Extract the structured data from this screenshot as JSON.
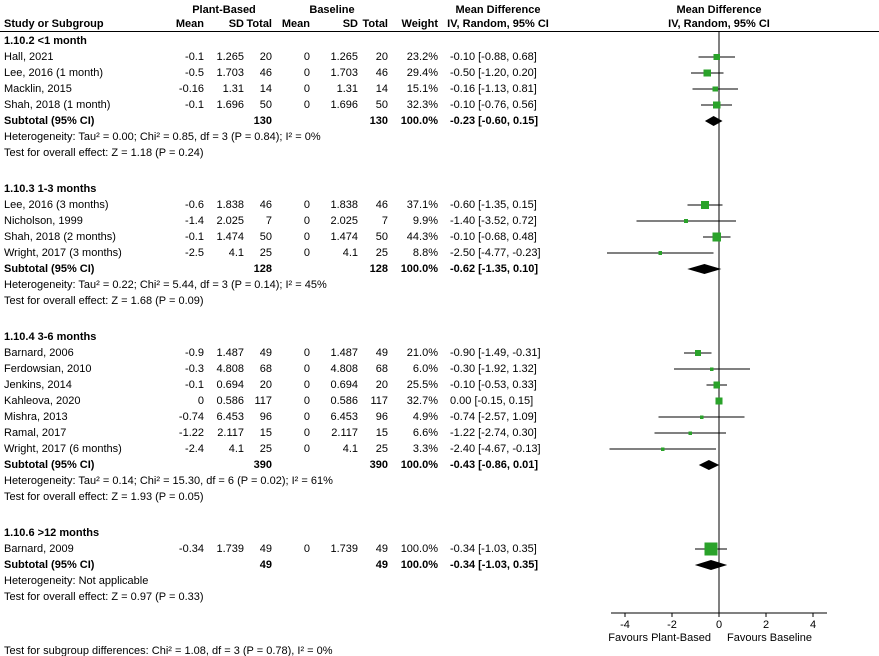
{
  "header": {
    "col_study": "Study or Subgroup",
    "group_plant": "Plant-Based",
    "group_baseline": "Baseline",
    "col_mean": "Mean",
    "col_sd": "SD",
    "col_total": "Total",
    "col_weight": "Weight",
    "md_title": "Mean Difference",
    "ci_method": "IV, Random, 95% CI"
  },
  "footer": {
    "subgroup_test": "Test for subgroup differences: Chi² = 1.08, df = 3 (P = 0.78), I² = 0%"
  },
  "colors": {
    "marker": "#2AA22A",
    "diamond": "#000000",
    "line": "#000000",
    "background": "#FFFFFF"
  },
  "chart_data": {
    "type": "forest",
    "effect_measure": "Mean Difference",
    "model": "IV, Random, 95% CI",
    "axis": {
      "ticks": [
        -4,
        -2,
        0,
        2,
        4
      ],
      "xlim": [
        -4.6,
        4.6
      ],
      "favours_left": "Favours Plant-Based",
      "favours_right": "Favours Baseline"
    },
    "sections": [
      {
        "title": "1.10.2 <1 month",
        "studies": [
          {
            "name": "Hall, 2021",
            "mean1": "-0.1",
            "sd1": "1.265",
            "total1": "20",
            "mean2": "0",
            "sd2": "1.265",
            "total2": "20",
            "weight": 23.2,
            "weight_text": "23.2%",
            "est": -0.1,
            "lo": -0.88,
            "hi": 0.68,
            "ci_text": "-0.10 [-0.88, 0.68]"
          },
          {
            "name": "Lee, 2016 (1 month)",
            "mean1": "-0.5",
            "sd1": "1.703",
            "total1": "46",
            "mean2": "0",
            "sd2": "1.703",
            "total2": "46",
            "weight": 29.4,
            "weight_text": "29.4%",
            "est": -0.5,
            "lo": -1.2,
            "hi": 0.2,
            "ci_text": "-0.50 [-1.20, 0.20]"
          },
          {
            "name": "Macklin, 2015",
            "mean1": "-0.16",
            "sd1": "1.31",
            "total1": "14",
            "mean2": "0",
            "sd2": "1.31",
            "total2": "14",
            "weight": 15.1,
            "weight_text": "15.1%",
            "est": -0.16,
            "lo": -1.13,
            "hi": 0.81,
            "ci_text": "-0.16 [-1.13, 0.81]"
          },
          {
            "name": "Shah, 2018 (1 month)",
            "mean1": "-0.1",
            "sd1": "1.696",
            "total1": "50",
            "mean2": "0",
            "sd2": "1.696",
            "total2": "50",
            "weight": 32.3,
            "weight_text": "32.3%",
            "est": -0.1,
            "lo": -0.76,
            "hi": 0.56,
            "ci_text": "-0.10 [-0.76, 0.56]"
          }
        ],
        "subtotal": {
          "label": "Subtotal (95% CI)",
          "total1": "130",
          "total2": "130",
          "weight_text": "100.0%",
          "est": -0.23,
          "lo": -0.6,
          "hi": 0.15,
          "ci_text": "-0.23 [-0.60, 0.15]"
        },
        "heterogeneity": "Heterogeneity: Tau² = 0.00; Chi² = 0.85, df = 3 (P = 0.84); I² = 0%",
        "test": "Test for overall effect: Z = 1.18 (P = 0.24)"
      },
      {
        "title": "1.10.3 1-3 months",
        "studies": [
          {
            "name": "Lee, 2016 (3 months)",
            "mean1": "-0.6",
            "sd1": "1.838",
            "total1": "46",
            "mean2": "0",
            "sd2": "1.838",
            "total2": "46",
            "weight": 37.1,
            "weight_text": "37.1%",
            "est": -0.6,
            "lo": -1.35,
            "hi": 0.15,
            "ci_text": "-0.60 [-1.35, 0.15]"
          },
          {
            "name": "Nicholson, 1999",
            "mean1": "-1.4",
            "sd1": "2.025",
            "total1": "7",
            "mean2": "0",
            "sd2": "2.025",
            "total2": "7",
            "weight": 9.9,
            "weight_text": "9.9%",
            "est": -1.4,
            "lo": -3.52,
            "hi": 0.72,
            "ci_text": "-1.40 [-3.52, 0.72]"
          },
          {
            "name": "Shah, 2018 (2 months)",
            "mean1": "-0.1",
            "sd1": "1.474",
            "total1": "50",
            "mean2": "0",
            "sd2": "1.474",
            "total2": "50",
            "weight": 44.3,
            "weight_text": "44.3%",
            "est": -0.1,
            "lo": -0.68,
            "hi": 0.48,
            "ci_text": "-0.10 [-0.68, 0.48]"
          },
          {
            "name": "Wright, 2017 (3 months)",
            "mean1": "-2.5",
            "sd1": "4.1",
            "total1": "25",
            "mean2": "0",
            "sd2": "4.1",
            "total2": "25",
            "weight": 8.8,
            "weight_text": "8.8%",
            "est": -2.5,
            "lo": -4.77,
            "hi": -0.23,
            "ci_text": "-2.50 [-4.77, -0.23]"
          }
        ],
        "subtotal": {
          "label": "Subtotal (95% CI)",
          "total1": "128",
          "total2": "128",
          "weight_text": "100.0%",
          "est": -0.62,
          "lo": -1.35,
          "hi": 0.1,
          "ci_text": "-0.62 [-1.35, 0.10]"
        },
        "heterogeneity": "Heterogeneity: Tau² = 0.22; Chi² = 5.44, df = 3 (P = 0.14); I² = 45%",
        "test": "Test for overall effect: Z = 1.68 (P = 0.09)"
      },
      {
        "title": "1.10.4 3-6 months",
        "studies": [
          {
            "name": "Barnard, 2006",
            "mean1": "-0.9",
            "sd1": "1.487",
            "total1": "49",
            "mean2": "0",
            "sd2": "1.487",
            "total2": "49",
            "weight": 21.0,
            "weight_text": "21.0%",
            "est": -0.9,
            "lo": -1.49,
            "hi": -0.31,
            "ci_text": "-0.90 [-1.49, -0.31]"
          },
          {
            "name": "Ferdowsian, 2010",
            "mean1": "-0.3",
            "sd1": "4.808",
            "total1": "68",
            "mean2": "0",
            "sd2": "4.808",
            "total2": "68",
            "weight": 6.0,
            "weight_text": "6.0%",
            "est": -0.3,
            "lo": -1.92,
            "hi": 1.32,
            "ci_text": "-0.30 [-1.92, 1.32]"
          },
          {
            "name": "Jenkins, 2014",
            "mean1": "-0.1",
            "sd1": "0.694",
            "total1": "20",
            "mean2": "0",
            "sd2": "0.694",
            "total2": "20",
            "weight": 25.5,
            "weight_text": "25.5%",
            "est": -0.1,
            "lo": -0.53,
            "hi": 0.33,
            "ci_text": "-0.10 [-0.53, 0.33]"
          },
          {
            "name": "Kahleova, 2020",
            "mean1": "0",
            "sd1": "0.586",
            "total1": "117",
            "mean2": "0",
            "sd2": "0.586",
            "total2": "117",
            "weight": 32.7,
            "weight_text": "32.7%",
            "est": 0.0,
            "lo": -0.15,
            "hi": 0.15,
            "ci_text": "0.00 [-0.15, 0.15]"
          },
          {
            "name": "Mishra, 2013",
            "mean1": "-0.74",
            "sd1": "6.453",
            "total1": "96",
            "mean2": "0",
            "sd2": "6.453",
            "total2": "96",
            "weight": 4.9,
            "weight_text": "4.9%",
            "est": -0.74,
            "lo": -2.57,
            "hi": 1.09,
            "ci_text": "-0.74 [-2.57, 1.09]"
          },
          {
            "name": "Ramal, 2017",
            "mean1": "-1.22",
            "sd1": "2.117",
            "total1": "15",
            "mean2": "0",
            "sd2": "2.117",
            "total2": "15",
            "weight": 6.6,
            "weight_text": "6.6%",
            "est": -1.22,
            "lo": -2.74,
            "hi": 0.3,
            "ci_text": "-1.22 [-2.74, 0.30]"
          },
          {
            "name": "Wright, 2017 (6 months)",
            "mean1": "-2.4",
            "sd1": "4.1",
            "total1": "25",
            "mean2": "0",
            "sd2": "4.1",
            "total2": "25",
            "weight": 3.3,
            "weight_text": "3.3%",
            "est": -2.4,
            "lo": -4.67,
            "hi": -0.13,
            "ci_text": "-2.40 [-4.67, -0.13]"
          }
        ],
        "subtotal": {
          "label": "Subtotal (95% CI)",
          "total1": "390",
          "total2": "390",
          "weight_text": "100.0%",
          "est": -0.43,
          "lo": -0.86,
          "hi": 0.01,
          "ci_text": "-0.43 [-0.86, 0.01]"
        },
        "heterogeneity": "Heterogeneity: Tau² = 0.14; Chi² = 15.30, df = 6 (P = 0.02); I² = 61%",
        "test": "Test for overall effect: Z = 1.93 (P = 0.05)"
      },
      {
        "title": "1.10.6 >12 months",
        "studies": [
          {
            "name": "Barnard, 2009",
            "mean1": "-0.34",
            "sd1": "1.739",
            "total1": "49",
            "mean2": "0",
            "sd2": "1.739",
            "total2": "49",
            "weight": 100.0,
            "weight_text": "100.0%",
            "est": -0.34,
            "lo": -1.03,
            "hi": 0.35,
            "ci_text": "-0.34 [-1.03, 0.35]"
          }
        ],
        "subtotal": {
          "label": "Subtotal (95% CI)",
          "total1": "49",
          "total2": "49",
          "weight_text": "100.0%",
          "est": -0.34,
          "lo": -1.03,
          "hi": 0.35,
          "ci_text": "-0.34 [-1.03, 0.35]"
        },
        "heterogeneity": "Heterogeneity: Not applicable",
        "test": "Test for overall effect: Z = 0.97 (P = 0.33)"
      }
    ]
  }
}
